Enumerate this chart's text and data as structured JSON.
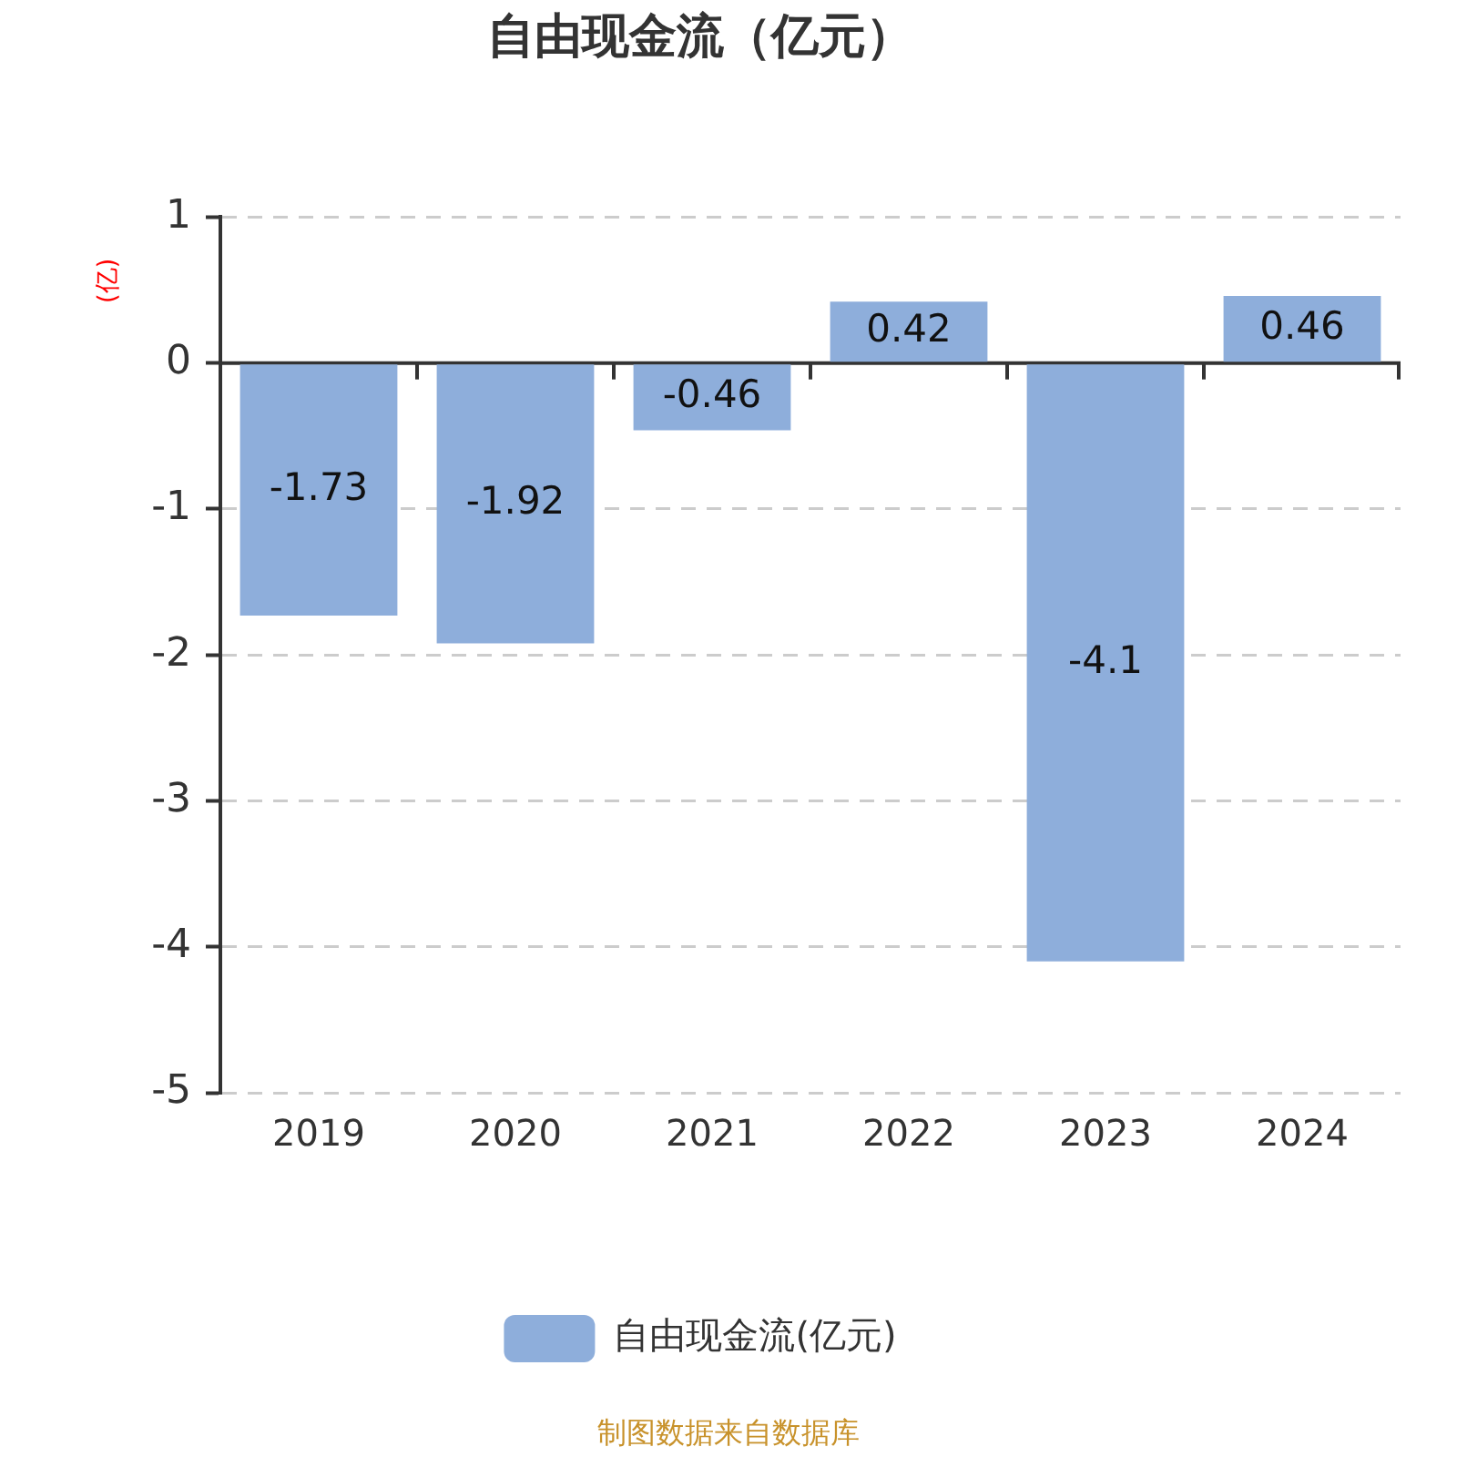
{
  "chart_data": {
    "type": "bar",
    "title": "自由现金流（亿元）",
    "ylabel": "(亿)",
    "categories": [
      "2019",
      "2020",
      "2021",
      "2022",
      "2023",
      "2024"
    ],
    "series": [
      {
        "name": "自由现金流(亿元)",
        "color": "#8eaedb",
        "values": [
          -1.73,
          -1.92,
          -0.46,
          0.42,
          -4.1,
          0.46
        ]
      }
    ],
    "ylim": [
      -5,
      1
    ],
    "yticks": [
      -5,
      -4,
      -3,
      -2,
      -1,
      0,
      1
    ],
    "grid": "y",
    "legend": "bottom",
    "data_labels": true,
    "annotations": [
      "制图数据来自数据库"
    ]
  }
}
